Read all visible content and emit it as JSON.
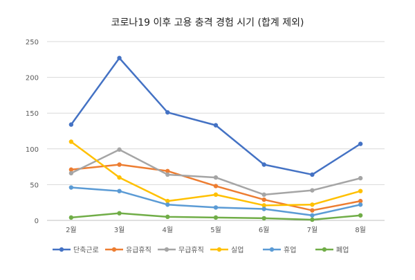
{
  "chart_data": {
    "type": "line",
    "title": "코로나19 이후 고용 충격 경험 시기 (합계 제외)",
    "categories": [
      "2월",
      "3월",
      "4월",
      "5월",
      "6월",
      "7월",
      "8월"
    ],
    "ylim": [
      0,
      250
    ],
    "yticks": [
      0,
      50,
      100,
      150,
      200,
      250
    ],
    "grid": true,
    "legend": "bottom",
    "series": [
      {
        "name": "단축근로",
        "color": "#4472c4",
        "values": [
          134,
          227,
          151,
          133,
          78,
          64,
          107
        ]
      },
      {
        "name": "유급휴직",
        "color": "#ed7d31",
        "values": [
          71,
          78,
          69,
          48,
          29,
          14,
          27
        ]
      },
      {
        "name": "무급휴직",
        "color": "#a5a5a5",
        "values": [
          66,
          99,
          64,
          60,
          36,
          42,
          59
        ]
      },
      {
        "name": "실업",
        "color": "#ffc000",
        "values": [
          110,
          60,
          27,
          36,
          21,
          22,
          41
        ]
      },
      {
        "name": "휴업",
        "color": "#5b9bd5",
        "values": [
          46,
          41,
          22,
          18,
          16,
          7,
          22
        ]
      },
      {
        "name": "폐업",
        "color": "#70ad47",
        "values": [
          4,
          10,
          5,
          4,
          3,
          1,
          7
        ]
      }
    ]
  }
}
